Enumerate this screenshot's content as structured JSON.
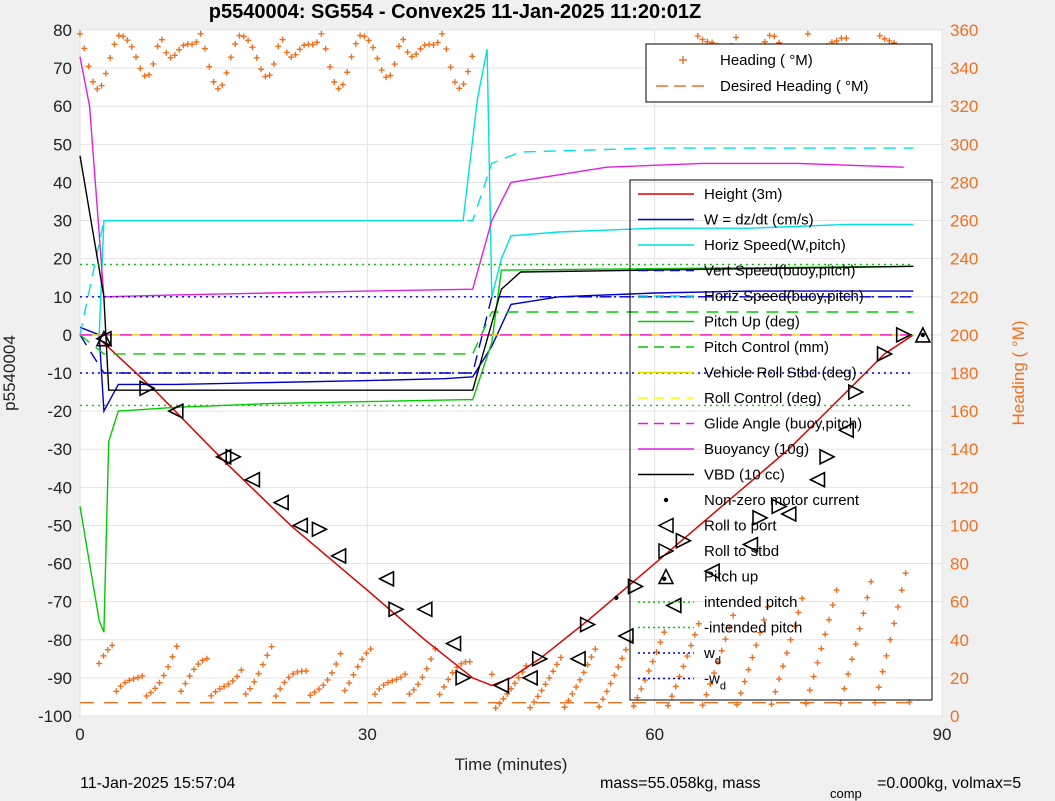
{
  "chart_data": {
    "type": "line",
    "title": "p5540004: SG554 - Convex25 11-Jan-2025 11:20:01Z",
    "xlabel": "Time (minutes)",
    "ylabel": "p5540004",
    "y2label": "Heading (  °M)",
    "xlim": [
      0,
      90
    ],
    "ylim": [
      -100,
      80
    ],
    "y2lim": [
      0,
      360
    ],
    "xticks": [
      "0",
      "30",
      "60",
      "90"
    ],
    "yticks": [
      "80",
      "70",
      "60",
      "50",
      "40",
      "30",
      "20",
      "10",
      "0",
      "-10",
      "-20",
      "-30",
      "-40",
      "-50",
      "-60",
      "-70",
      "-80",
      "-90",
      "-100"
    ],
    "y2ticks": [
      "360",
      "340",
      "320",
      "300",
      "280",
      "260",
      "240",
      "220",
      "200",
      "180",
      "160",
      "140",
      "120",
      "100",
      "80",
      "60",
      "40",
      "20",
      "0"
    ],
    "grid": true,
    "heading_legend": [
      {
        "label": "Heading (  °M)",
        "color": "#f07020",
        "style": "plus"
      },
      {
        "label": "Desired Heading (    °M)",
        "color": "#f07020",
        "style": "dash"
      }
    ],
    "legend": [
      {
        "label": "Height (3m)",
        "color": "#e00000",
        "style": "solid"
      },
      {
        "label": "W = dz/dt (cm/s)",
        "color": "#0000cc",
        "style": "solid"
      },
      {
        "label": "Horiz Speed(W,pitch)",
        "color": "#00e0e0",
        "style": "solid"
      },
      {
        "label": "Vert Speed(buoy,pitch)",
        "color": "#0000cc",
        "style": "dash"
      },
      {
        "label": "Horiz Speed(buoy,pitch)",
        "color": "#00e0e0",
        "style": "dash"
      },
      {
        "label": "Pitch Up (deg)",
        "color": "#00cc00",
        "style": "solid"
      },
      {
        "label": "Pitch Control (mm)",
        "color": "#00cc00",
        "style": "dash"
      },
      {
        "label": "Vehicle Roll Stbd (deg)",
        "color": "#dddd00",
        "style": "solid"
      },
      {
        "label": "Roll Control (deg)",
        "color": "#ffff00",
        "style": "dash"
      },
      {
        "label": "Glide Angle (buoy,pitch)",
        "color": "#ff00ff",
        "style": "dash"
      },
      {
        "label": "Buoyancy (10g)",
        "color": "#e020e0",
        "style": "solid"
      },
      {
        "label": "VBD (10 cc)",
        "color": "#000000",
        "style": "solid"
      },
      {
        "label": "Non-zero motor current",
        "color": "#000000",
        "style": "dot"
      },
      {
        "label": "Roll to port",
        "color": "#000000",
        "style": "tri-left"
      },
      {
        "label": "Roll to stbd",
        "color": "#000000",
        "style": "tri-right"
      },
      {
        "label": "Pitch up",
        "color": "#000000",
        "style": "tri-up"
      },
      {
        "label": "intended pitch",
        "color": "#00cc00",
        "style": "dotted"
      },
      {
        "label": "-intended pitch",
        "color": "#00cc00",
        "style": "dotted"
      },
      {
        "label": "w",
        "sub": "d",
        "color": "#0000cc",
        "style": "dotted"
      },
      {
        "label": "-w",
        "sub": "d",
        "color": "#0000cc",
        "style": "dotted"
      }
    ],
    "series": [
      {
        "name": "Height (3m)",
        "x": [
          2,
          8,
          15,
          22,
          30,
          36,
          41,
          43,
          45,
          48,
          53,
          60,
          67,
          74,
          80,
          84,
          87
        ],
        "y": [
          -1,
          -15,
          -33,
          -50,
          -67,
          -80,
          -90,
          -92,
          -90,
          -85,
          -75,
          -60,
          -45,
          -30,
          -15,
          -5,
          0
        ]
      },
      {
        "name": "W = dz/dt (cm/s)",
        "x": [
          0,
          2,
          2.5,
          4,
          10,
          20,
          30,
          38,
          41,
          43,
          45,
          50,
          60,
          70,
          80,
          87
        ],
        "y": [
          2,
          0,
          -20,
          -13,
          -13,
          -12.5,
          -12,
          -11.5,
          -11,
          -3,
          8,
          10,
          11,
          11.5,
          11.5,
          11.5
        ]
      },
      {
        "name": "Horiz Speed(W,pitch)",
        "x": [
          0,
          2,
          2.5,
          3,
          10,
          20,
          30,
          40,
          41.5,
          42.5,
          43,
          44,
          45,
          50,
          60,
          70,
          80,
          87
        ],
        "y": [
          0,
          0,
          30,
          30,
          30,
          30,
          30,
          30,
          62,
          75,
          10,
          20,
          26,
          27,
          28,
          28,
          29,
          29
        ]
      },
      {
        "name": "Vert Speed(buoy,pitch)",
        "x": [
          0,
          2.5,
          41,
          43,
          87
        ],
        "y": [
          0,
          -10,
          -10,
          10,
          10
        ]
      },
      {
        "name": "Horiz Speed(buoy,pitch)",
        "x": [
          0,
          2.5,
          10,
          20,
          30,
          40,
          41,
          43,
          46,
          60,
          75,
          87
        ],
        "y": [
          0,
          30,
          30,
          30,
          30,
          30,
          30,
          45,
          48,
          49,
          49,
          49
        ]
      },
      {
        "name": "Pitch Up (deg)",
        "x": [
          0,
          2,
          2.5,
          3,
          4,
          10,
          20,
          30,
          40,
          41,
          43,
          44,
          87
        ],
        "y": [
          -45,
          -75,
          -78,
          -28,
          -20,
          -19,
          -18,
          -17.5,
          -17,
          -17,
          -2,
          17,
          18
        ]
      },
      {
        "name": "Pitch Control (mm)",
        "x": [
          0,
          2.5,
          41,
          43,
          87
        ],
        "y": [
          0,
          -5,
          -5,
          6,
          6
        ]
      },
      {
        "name": "Vehicle Roll Stbd (deg)",
        "x": [
          0,
          87
        ],
        "y": [
          0,
          0
        ]
      },
      {
        "name": "Roll Control (deg)",
        "x": [
          0,
          87
        ],
        "y": [
          0,
          0
        ]
      },
      {
        "name": "Glide Angle (buoy,pitch)",
        "x": [
          0,
          87
        ],
        "y": [
          0,
          0
        ]
      },
      {
        "name": "Buoyancy (10g)",
        "x": [
          0,
          1,
          2.5,
          10,
          20,
          30,
          41,
          43,
          45,
          55,
          65,
          75,
          86
        ],
        "y": [
          73,
          60,
          10,
          10.5,
          11,
          11.5,
          12,
          30,
          40,
          44,
          45,
          45,
          44
        ]
      },
      {
        "name": "VBD (10 cc)",
        "x": [
          0,
          2.5,
          3,
          41,
          44,
          46,
          87
        ],
        "y": [
          47,
          10,
          -14.5,
          -14.5,
          12,
          16.5,
          18
        ]
      },
      {
        "name": "Non-zero motor current",
        "x": [
          56,
          61,
          88
        ],
        "y": [
          -69,
          -64,
          0
        ]
      },
      {
        "name": "Roll to port",
        "x": [
          2.5,
          10,
          15,
          18,
          21,
          23,
          27,
          32,
          36,
          39,
          44,
          47,
          52,
          57,
          62,
          66,
          70,
          74,
          77,
          80
        ],
        "y": [
          -1,
          -20,
          -32,
          -38,
          -44,
          -50,
          -58,
          -64,
          -72,
          -81,
          -92,
          -90,
          -85,
          -79,
          -71,
          -62,
          -55,
          -47,
          -38,
          -25
        ]
      },
      {
        "name": "Roll to stbd",
        "x": [
          7,
          16,
          25,
          33,
          40,
          48,
          53,
          58,
          63,
          71,
          73,
          78,
          81,
          84,
          86
        ],
        "y": [
          -14,
          -32,
          -51,
          -72,
          -90,
          -85,
          -76,
          -66,
          -54,
          -48,
          -45,
          -32,
          -15,
          -5,
          0
        ]
      },
      {
        "name": "Pitch up",
        "x": [
          2.5,
          88
        ],
        "y": [
          -1,
          0
        ]
      },
      {
        "name": "intended pitch",
        "x": [
          0,
          87
        ],
        "y": [
          18.5,
          18.5
        ]
      },
      {
        "name": "-intended pitch",
        "x": [
          0,
          87
        ],
        "y": [
          -18.5,
          -18.5
        ]
      },
      {
        "name": "w",
        "x": [
          0,
          87
        ],
        "y": [
          10,
          10
        ]
      },
      {
        "name": "-w",
        "x": [
          0,
          87
        ],
        "y": [
          -10,
          -10
        ]
      },
      {
        "name": "Desired Heading (    °M)",
        "x": [
          0,
          87
        ],
        "y": [
          -96.5,
          -96.5
        ]
      }
    ]
  },
  "footer": {
    "timestamp": "11-Jan-2025 15:57:04",
    "mass_text": "mass=55.058kg, mass",
    "comp_sub": "comp",
    "mass_text2": "=0.000kg, volmax=5"
  }
}
